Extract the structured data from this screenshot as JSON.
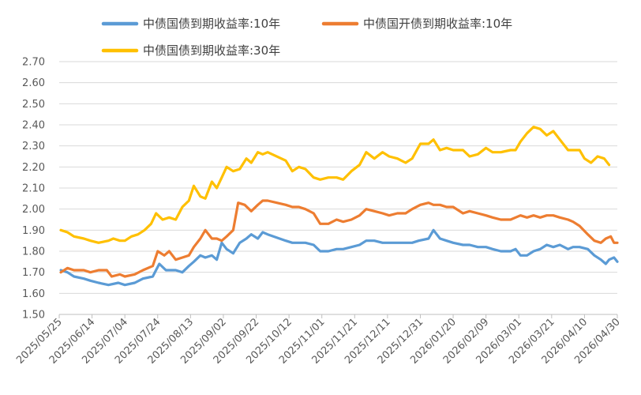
{
  "chart_data": {
    "type": "line",
    "ylim": [
      1.5,
      2.7
    ],
    "ytick_step": 0.1,
    "x_range": [
      "2025/05/25",
      "2026/04/30"
    ],
    "xticks": [
      "2025/05/25",
      "2025/06/14",
      "2025/07/04",
      "2025/07/24",
      "2025/08/13",
      "2025/09/02",
      "2025/09/22",
      "2025/10/12",
      "2025/11/01",
      "2025/11/21",
      "2025/12/11",
      "2025/12/31",
      "2026/01/20",
      "2026/02/09",
      "2026/03/01",
      "2026/03/21",
      "2026/04/10",
      "2026/04/30"
    ],
    "grid": "horizontal",
    "legend_position": "top",
    "series": [
      {
        "name": "中债国债到期收益率:10年",
        "color": "#5B9BD5",
        "points": [
          [
            "2025/05/26",
            1.71
          ],
          [
            "2025/05/30",
            1.7
          ],
          [
            "2025/06/03",
            1.68
          ],
          [
            "2025/06/09",
            1.67
          ],
          [
            "2025/06/13",
            1.66
          ],
          [
            "2025/06/18",
            1.65
          ],
          [
            "2025/06/24",
            1.64
          ],
          [
            "2025/06/30",
            1.65
          ],
          [
            "2025/07/04",
            1.64
          ],
          [
            "2025/07/10",
            1.65
          ],
          [
            "2025/07/15",
            1.67
          ],
          [
            "2025/07/21",
            1.68
          ],
          [
            "2025/07/25",
            1.74
          ],
          [
            "2025/07/29",
            1.71
          ],
          [
            "2025/08/04",
            1.71
          ],
          [
            "2025/08/08",
            1.7
          ],
          [
            "2025/08/12",
            1.73
          ],
          [
            "2025/08/15",
            1.75
          ],
          [
            "2025/08/19",
            1.78
          ],
          [
            "2025/08/22",
            1.77
          ],
          [
            "2025/08/26",
            1.78
          ],
          [
            "2025/08/29",
            1.76
          ],
          [
            "2025/09/01",
            1.84
          ],
          [
            "2025/09/04",
            1.81
          ],
          [
            "2025/09/08",
            1.79
          ],
          [
            "2025/09/12",
            1.84
          ],
          [
            "2025/09/16",
            1.86
          ],
          [
            "2025/09/19",
            1.88
          ],
          [
            "2025/09/23",
            1.86
          ],
          [
            "2025/09/26",
            1.89
          ],
          [
            "2025/09/29",
            1.88
          ],
          [
            "2025/10/10",
            1.85
          ],
          [
            "2025/10/14",
            1.84
          ],
          [
            "2025/10/18",
            1.84
          ],
          [
            "2025/10/22",
            1.84
          ],
          [
            "2025/10/27",
            1.83
          ],
          [
            "2025/10/31",
            1.8
          ],
          [
            "2025/11/05",
            1.8
          ],
          [
            "2025/11/10",
            1.81
          ],
          [
            "2025/11/14",
            1.81
          ],
          [
            "2025/11/19",
            1.82
          ],
          [
            "2025/11/24",
            1.83
          ],
          [
            "2025/11/28",
            1.85
          ],
          [
            "2025/12/03",
            1.85
          ],
          [
            "2025/12/08",
            1.84
          ],
          [
            "2025/12/12",
            1.84
          ],
          [
            "2025/12/17",
            1.84
          ],
          [
            "2025/12/22",
            1.84
          ],
          [
            "2025/12/26",
            1.84
          ],
          [
            "2025/12/30",
            1.85
          ],
          [
            "2026/01/05",
            1.86
          ],
          [
            "2026/01/08",
            1.9
          ],
          [
            "2026/01/12",
            1.86
          ],
          [
            "2026/01/16",
            1.85
          ],
          [
            "2026/01/20",
            1.84
          ],
          [
            "2026/01/26",
            1.83
          ],
          [
            "2026/01/30",
            1.83
          ],
          [
            "2026/02/04",
            1.82
          ],
          [
            "2026/02/09",
            1.82
          ],
          [
            "2026/02/13",
            1.81
          ],
          [
            "2026/02/18",
            1.8
          ],
          [
            "2026/02/24",
            1.8
          ],
          [
            "2026/02/27",
            1.81
          ],
          [
            "2026/03/02",
            1.78
          ],
          [
            "2026/03/06",
            1.78
          ],
          [
            "2026/03/10",
            1.8
          ],
          [
            "2026/03/14",
            1.81
          ],
          [
            "2026/03/18",
            1.83
          ],
          [
            "2026/03/22",
            1.82
          ],
          [
            "2026/03/26",
            1.83
          ],
          [
            "2026/03/31",
            1.81
          ],
          [
            "2026/04/03",
            1.82
          ],
          [
            "2026/04/07",
            1.82
          ],
          [
            "2026/04/12",
            1.81
          ],
          [
            "2026/04/16",
            1.78
          ],
          [
            "2026/04/20",
            1.76
          ],
          [
            "2026/04/23",
            1.74
          ],
          [
            "2026/04/25",
            1.76
          ],
          [
            "2026/04/28",
            1.77
          ],
          [
            "2026/04/30",
            1.75
          ]
        ]
      },
      {
        "name": "中债国开债到期收益率:10年",
        "color": "#ED7D31",
        "points": [
          [
            "2025/05/26",
            1.7
          ],
          [
            "2025/05/30",
            1.72
          ],
          [
            "2025/06/03",
            1.71
          ],
          [
            "2025/06/09",
            1.71
          ],
          [
            "2025/06/13",
            1.7
          ],
          [
            "2025/06/18",
            1.71
          ],
          [
            "2025/06/23",
            1.71
          ],
          [
            "2025/06/26",
            1.68
          ],
          [
            "2025/07/01",
            1.69
          ],
          [
            "2025/07/04",
            1.68
          ],
          [
            "2025/07/10",
            1.69
          ],
          [
            "2025/07/15",
            1.71
          ],
          [
            "2025/07/21",
            1.73
          ],
          [
            "2025/07/24",
            1.8
          ],
          [
            "2025/07/28",
            1.78
          ],
          [
            "2025/07/31",
            1.8
          ],
          [
            "2025/08/04",
            1.76
          ],
          [
            "2025/08/08",
            1.77
          ],
          [
            "2025/08/12",
            1.78
          ],
          [
            "2025/08/15",
            1.82
          ],
          [
            "2025/08/19",
            1.86
          ],
          [
            "2025/08/22",
            1.9
          ],
          [
            "2025/08/26",
            1.86
          ],
          [
            "2025/08/29",
            1.86
          ],
          [
            "2025/09/01",
            1.85
          ],
          [
            "2025/09/04",
            1.87
          ],
          [
            "2025/09/08",
            1.9
          ],
          [
            "2025/09/11",
            2.03
          ],
          [
            "2025/09/15",
            2.02
          ],
          [
            "2025/09/19",
            1.99
          ],
          [
            "2025/09/23",
            2.02
          ],
          [
            "2025/09/26",
            2.04
          ],
          [
            "2025/09/29",
            2.04
          ],
          [
            "2025/10/10",
            2.02
          ],
          [
            "2025/10/14",
            2.01
          ],
          [
            "2025/10/18",
            2.01
          ],
          [
            "2025/10/22",
            2.0
          ],
          [
            "2025/10/27",
            1.98
          ],
          [
            "2025/10/31",
            1.93
          ],
          [
            "2025/11/05",
            1.93
          ],
          [
            "2025/11/10",
            1.95
          ],
          [
            "2025/11/14",
            1.94
          ],
          [
            "2025/11/19",
            1.95
          ],
          [
            "2025/11/24",
            1.97
          ],
          [
            "2025/11/28",
            2.0
          ],
          [
            "2025/12/03",
            1.99
          ],
          [
            "2025/12/08",
            1.98
          ],
          [
            "2025/12/12",
            1.97
          ],
          [
            "2025/12/17",
            1.98
          ],
          [
            "2025/12/22",
            1.98
          ],
          [
            "2025/12/26",
            2.0
          ],
          [
            "2025/12/31",
            2.02
          ],
          [
            "2026/01/05",
            2.03
          ],
          [
            "2026/01/08",
            2.02
          ],
          [
            "2026/01/12",
            2.02
          ],
          [
            "2026/01/16",
            2.01
          ],
          [
            "2026/01/20",
            2.01
          ],
          [
            "2026/01/26",
            1.98
          ],
          [
            "2026/01/30",
            1.99
          ],
          [
            "2026/02/04",
            1.98
          ],
          [
            "2026/02/09",
            1.97
          ],
          [
            "2026/02/13",
            1.96
          ],
          [
            "2026/02/18",
            1.95
          ],
          [
            "2026/02/24",
            1.95
          ],
          [
            "2026/02/27",
            1.96
          ],
          [
            "2026/03/02",
            1.97
          ],
          [
            "2026/03/06",
            1.96
          ],
          [
            "2026/03/10",
            1.97
          ],
          [
            "2026/03/14",
            1.96
          ],
          [
            "2026/03/18",
            1.97
          ],
          [
            "2026/03/22",
            1.97
          ],
          [
            "2026/03/26",
            1.96
          ],
          [
            "2026/03/31",
            1.95
          ],
          [
            "2026/04/03",
            1.94
          ],
          [
            "2026/04/07",
            1.92
          ],
          [
            "2026/04/12",
            1.88
          ],
          [
            "2026/04/16",
            1.85
          ],
          [
            "2026/04/20",
            1.84
          ],
          [
            "2026/04/23",
            1.86
          ],
          [
            "2026/04/26",
            1.87
          ],
          [
            "2026/04/28",
            1.84
          ],
          [
            "2026/04/30",
            1.84
          ]
        ]
      },
      {
        "name": "中债国债到期收益率:30年",
        "color": "#FFC000",
        "points": [
          [
            "2025/05/26",
            1.9
          ],
          [
            "2025/05/30",
            1.89
          ],
          [
            "2025/06/03",
            1.87
          ],
          [
            "2025/06/09",
            1.86
          ],
          [
            "2025/06/13",
            1.85
          ],
          [
            "2025/06/18",
            1.84
          ],
          [
            "2025/06/24",
            1.85
          ],
          [
            "2025/06/27",
            1.86
          ],
          [
            "2025/07/01",
            1.85
          ],
          [
            "2025/07/04",
            1.85
          ],
          [
            "2025/07/08",
            1.87
          ],
          [
            "2025/07/12",
            1.88
          ],
          [
            "2025/07/16",
            1.9
          ],
          [
            "2025/07/20",
            1.93
          ],
          [
            "2025/07/23",
            1.98
          ],
          [
            "2025/07/27",
            1.95
          ],
          [
            "2025/07/31",
            1.96
          ],
          [
            "2025/08/04",
            1.95
          ],
          [
            "2025/08/08",
            2.01
          ],
          [
            "2025/08/12",
            2.04
          ],
          [
            "2025/08/15",
            2.11
          ],
          [
            "2025/08/19",
            2.06
          ],
          [
            "2025/08/22",
            2.05
          ],
          [
            "2025/08/26",
            2.13
          ],
          [
            "2025/08/29",
            2.1
          ],
          [
            "2025/09/01",
            2.15
          ],
          [
            "2025/09/04",
            2.2
          ],
          [
            "2025/09/08",
            2.18
          ],
          [
            "2025/09/12",
            2.19
          ],
          [
            "2025/09/16",
            2.24
          ],
          [
            "2025/09/19",
            2.22
          ],
          [
            "2025/09/23",
            2.27
          ],
          [
            "2025/09/26",
            2.26
          ],
          [
            "2025/09/29",
            2.27
          ],
          [
            "2025/10/10",
            2.23
          ],
          [
            "2025/10/14",
            2.18
          ],
          [
            "2025/10/18",
            2.2
          ],
          [
            "2025/10/22",
            2.19
          ],
          [
            "2025/10/27",
            2.15
          ],
          [
            "2025/10/31",
            2.14
          ],
          [
            "2025/11/05",
            2.15
          ],
          [
            "2025/11/10",
            2.15
          ],
          [
            "2025/11/14",
            2.14
          ],
          [
            "2025/11/19",
            2.18
          ],
          [
            "2025/11/24",
            2.21
          ],
          [
            "2025/11/28",
            2.27
          ],
          [
            "2025/12/03",
            2.24
          ],
          [
            "2025/12/08",
            2.27
          ],
          [
            "2025/12/12",
            2.25
          ],
          [
            "2025/12/17",
            2.24
          ],
          [
            "2025/12/22",
            2.22
          ],
          [
            "2025/12/26",
            2.24
          ],
          [
            "2025/12/31",
            2.31
          ],
          [
            "2026/01/05",
            2.31
          ],
          [
            "2026/01/08",
            2.33
          ],
          [
            "2026/01/12",
            2.28
          ],
          [
            "2026/01/16",
            2.29
          ],
          [
            "2026/01/20",
            2.28
          ],
          [
            "2026/01/26",
            2.28
          ],
          [
            "2026/01/30",
            2.25
          ],
          [
            "2026/02/04",
            2.26
          ],
          [
            "2026/02/09",
            2.29
          ],
          [
            "2026/02/13",
            2.27
          ],
          [
            "2026/02/18",
            2.27
          ],
          [
            "2026/02/24",
            2.28
          ],
          [
            "2026/02/27",
            2.28
          ],
          [
            "2026/03/02",
            2.32
          ],
          [
            "2026/03/06",
            2.36
          ],
          [
            "2026/03/10",
            2.39
          ],
          [
            "2026/03/14",
            2.38
          ],
          [
            "2026/03/18",
            2.35
          ],
          [
            "2026/03/22",
            2.37
          ],
          [
            "2026/03/26",
            2.33
          ],
          [
            "2026/03/31",
            2.28
          ],
          [
            "2026/04/03",
            2.28
          ],
          [
            "2026/04/07",
            2.28
          ],
          [
            "2026/04/10",
            2.24
          ],
          [
            "2026/04/14",
            2.22
          ],
          [
            "2026/04/18",
            2.25
          ],
          [
            "2026/04/22",
            2.24
          ],
          [
            "2026/04/25",
            2.21
          ]
        ]
      }
    ]
  }
}
